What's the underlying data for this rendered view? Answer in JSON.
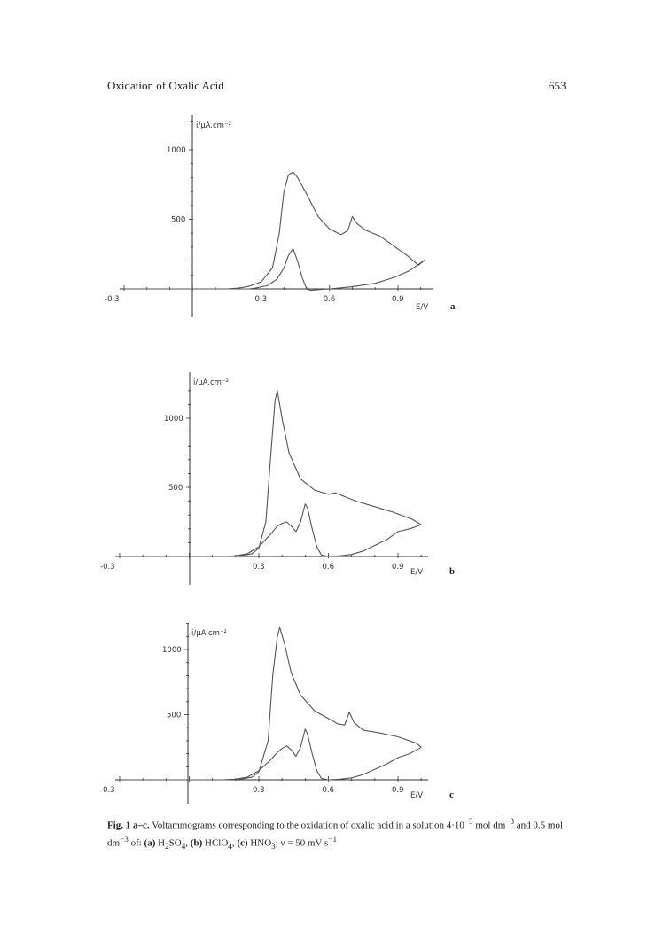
{
  "header": {
    "running_title": "Oxidation of Oxalic Acid",
    "page_number": "653"
  },
  "chart_data": [
    {
      "type": "line",
      "panel": "a",
      "xlabel": "E/V",
      "ylabel": "i/μA.cm⁻²",
      "x_ticks": [
        "-0.3",
        "0.3",
        "0.6",
        "0.9"
      ],
      "y_ticks": [
        "500",
        "1000"
      ],
      "xlim": [
        -0.3,
        1.05
      ],
      "ylim": [
        -50,
        1200
      ],
      "series": [
        {
          "x": [
            -0.3,
            0.0,
            0.15,
            0.2,
            0.25,
            0.3,
            0.35,
            0.38,
            0.4,
            0.42,
            0.44,
            0.46,
            0.5,
            0.55,
            0.6,
            0.65,
            0.68,
            0.7,
            0.72,
            0.76,
            0.82,
            0.88,
            0.94,
            0.99,
            1.02
          ],
          "y": [
            0,
            0,
            0,
            5,
            20,
            50,
            150,
            400,
            700,
            820,
            840,
            800,
            680,
            520,
            430,
            390,
            420,
            520,
            470,
            420,
            380,
            310,
            240,
            170,
            210
          ]
        },
        {
          "x": [
            1.02,
            0.95,
            0.88,
            0.8,
            0.7,
            0.6,
            0.55,
            0.52,
            0.5,
            0.48,
            0.46,
            0.44,
            0.42,
            0.4,
            0.37,
            0.33,
            0.29,
            0.25,
            0.2,
            0.1,
            -0.3
          ],
          "y": [
            210,
            130,
            80,
            40,
            15,
            0,
            -5,
            -10,
            0,
            80,
            200,
            290,
            240,
            150,
            70,
            25,
            10,
            0,
            0,
            0,
            0
          ]
        }
      ]
    },
    {
      "type": "line",
      "panel": "b",
      "xlabel": "E/V",
      "ylabel": "i/μA.cm⁻²",
      "x_ticks": [
        "-0.3",
        "0.3",
        "0.6",
        "0.9"
      ],
      "y_ticks": [
        "500",
        "1000"
      ],
      "xlim": [
        -0.3,
        1.05
      ],
      "ylim": [
        -50,
        1300
      ],
      "series": [
        {
          "x": [
            -0.3,
            0.0,
            0.15,
            0.22,
            0.27,
            0.3,
            0.33,
            0.35,
            0.37,
            0.38,
            0.4,
            0.43,
            0.48,
            0.54,
            0.6,
            0.63,
            0.66,
            0.72,
            0.8,
            0.88,
            0.96,
            1.0
          ],
          "y": [
            0,
            0,
            0,
            5,
            20,
            60,
            250,
            700,
            1130,
            1200,
            1000,
            750,
            560,
            480,
            450,
            460,
            440,
            400,
            360,
            320,
            270,
            230
          ]
        },
        {
          "x": [
            1.0,
            0.95,
            0.9,
            0.85,
            0.8,
            0.75,
            0.7,
            0.65,
            0.6,
            0.57,
            0.55,
            0.53,
            0.51,
            0.5,
            0.48,
            0.46,
            0.44,
            0.42,
            0.4,
            0.38,
            0.35,
            0.3,
            0.25,
            0.2,
            0.15,
            0.05,
            -0.3
          ],
          "y": [
            230,
            200,
            180,
            120,
            80,
            40,
            15,
            5,
            0,
            10,
            70,
            200,
            350,
            380,
            250,
            180,
            220,
            250,
            240,
            220,
            160,
            70,
            20,
            5,
            0,
            0,
            0
          ]
        }
      ]
    },
    {
      "type": "line",
      "panel": "c",
      "xlabel": "E/V",
      "ylabel": "i/μA.cm⁻²",
      "x_ticks": [
        "-0.3",
        "0.3",
        "0.6",
        "0.9"
      ],
      "y_ticks": [
        "500",
        "1000"
      ],
      "xlim": [
        -0.3,
        1.05
      ],
      "ylim": [
        -50,
        1300
      ],
      "series": [
        {
          "x": [
            -0.3,
            0.0,
            0.15,
            0.22,
            0.27,
            0.3,
            0.34,
            0.36,
            0.38,
            0.39,
            0.41,
            0.44,
            0.48,
            0.54,
            0.6,
            0.64,
            0.67,
            0.69,
            0.71,
            0.75,
            0.82,
            0.9,
            0.98,
            1.0
          ],
          "y": [
            0,
            0,
            0,
            5,
            20,
            60,
            300,
            800,
            1100,
            1170,
            1050,
            820,
            650,
            530,
            470,
            430,
            420,
            520,
            440,
            380,
            360,
            330,
            280,
            250
          ]
        },
        {
          "x": [
            1.0,
            0.95,
            0.9,
            0.85,
            0.8,
            0.75,
            0.7,
            0.65,
            0.6,
            0.57,
            0.55,
            0.53,
            0.51,
            0.5,
            0.48,
            0.46,
            0.44,
            0.42,
            0.4,
            0.38,
            0.35,
            0.3,
            0.25,
            0.2,
            0.15,
            0.05,
            -0.3
          ],
          "y": [
            250,
            200,
            170,
            120,
            80,
            40,
            15,
            5,
            0,
            10,
            70,
            200,
            350,
            390,
            250,
            180,
            230,
            260,
            240,
            210,
            150,
            70,
            20,
            5,
            0,
            0,
            0
          ]
        }
      ]
    }
  ],
  "caption": {
    "fig": "Fig. 1 a–c.",
    "text1": " Voltammograms corresponding to the oxidation of oxalic acid in a solution 4·10",
    "sup1": "−3",
    "text2": " mol dm",
    "sup2": "−3",
    "text3": " and 0.5 mol dm",
    "sup3": "−3",
    "text4": " of: ",
    "a_label": "(a)",
    "a_text": " H",
    "a_sub1": "2",
    "a_text2": "SO",
    "a_sub2": "4",
    "a_sep": ", ",
    "b_label": "(b)",
    "b_text": " HClO",
    "b_sub": "4",
    "b_sep": ", ",
    "c_label": "(c)",
    "c_text": " HNO",
    "c_sub": "3",
    "c_tail": "; ν = 50 mV s",
    "sup4": "−1"
  }
}
